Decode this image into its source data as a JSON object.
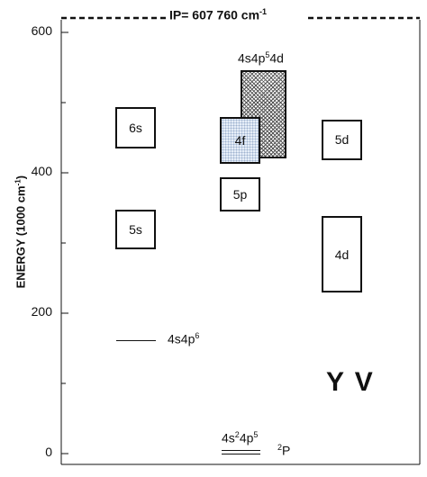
{
  "figure": {
    "ion_label": "Y V",
    "ip": {
      "text": "IP= 607 760 cm",
      "exp": "-1",
      "value": 607760
    },
    "axis": {
      "label": "ENERGY (1000 cm",
      "label_exp": "-1",
      "label_close": ")",
      "ticks": [
        "0",
        "200",
        "400",
        "600"
      ],
      "range": [
        0,
        620
      ]
    },
    "levels": [
      {
        "label": "6s",
        "low": 435,
        "high": 493,
        "style": "plain"
      },
      {
        "label": "5s",
        "low": 291,
        "high": 348,
        "style": "plain"
      },
      {
        "label": "5p",
        "low": 345,
        "high": 393,
        "style": "plain"
      },
      {
        "label": "4f",
        "low": 413,
        "high": 480,
        "style": "dotted"
      },
      {
        "label": "",
        "low": 420,
        "high": 546,
        "style": "hatched"
      },
      {
        "label": "5d",
        "low": 418,
        "high": 476,
        "style": "plain"
      },
      {
        "label": "4d",
        "low": 229,
        "high": 338,
        "style": "plain"
      }
    ],
    "hatched_label": {
      "a": "4s4p",
      "a_exp": "5",
      "b": "4d"
    },
    "config_4s4p6": {
      "base": "4s4p",
      "exp": "6",
      "energy": 161
    },
    "ground": {
      "c1": "4s",
      "e1": "2",
      "c2": "4p",
      "e2": "5",
      "term_exp": "2",
      "term": "P",
      "energy": 0
    }
  }
}
